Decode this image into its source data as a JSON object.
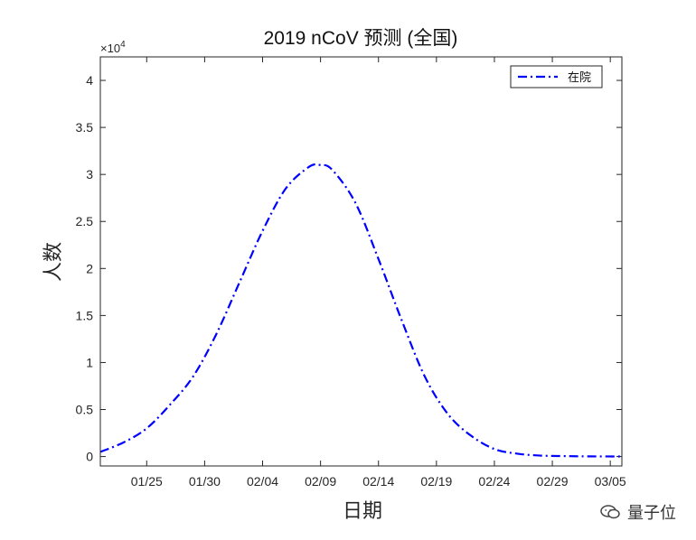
{
  "chart_data": {
    "type": "line",
    "title": "2019 nCoV 预测 (全国)",
    "xlabel": "日期",
    "ylabel": "人数",
    "y_exponent": "×10",
    "y_exponent_power": "4",
    "ylim": [
      -0.1,
      4.25
    ],
    "y_multiplier": 10000,
    "yticks": [
      0,
      0.5,
      1,
      1.5,
      2,
      2.5,
      3,
      3.5,
      4
    ],
    "ytick_labels": [
      "0",
      "0.5",
      "1",
      "1.5",
      "2",
      "2.5",
      "3",
      "3.5",
      "4"
    ],
    "xlim": [
      "01/21",
      "03/06"
    ],
    "xticks": [
      "01/25",
      "01/30",
      "02/04",
      "02/09",
      "02/14",
      "02/19",
      "02/24",
      "02/29",
      "03/05"
    ],
    "xtick_labels": [
      "01/25",
      "01/30",
      "02/04",
      "02/09",
      "02/14",
      "02/19",
      "02/24",
      "02/29",
      "03/05"
    ],
    "grid": false,
    "legend_position": "top-right",
    "series": [
      {
        "name": "在院",
        "color": "#0000ff",
        "line_style": "dash-dot",
        "x": [
          "01/21",
          "01/23",
          "01/25",
          "01/27",
          "01/29",
          "01/31",
          "02/02",
          "02/04",
          "02/06",
          "02/08",
          "02/09",
          "02/10",
          "02/12",
          "02/14",
          "02/16",
          "02/18",
          "02/20",
          "02/22",
          "02/24",
          "02/26",
          "02/28",
          "03/01",
          "03/03",
          "03/06"
        ],
        "values": [
          0.05,
          0.15,
          0.3,
          0.55,
          0.85,
          1.3,
          1.85,
          2.4,
          2.85,
          3.08,
          3.1,
          3.05,
          2.7,
          2.1,
          1.45,
          0.85,
          0.45,
          0.22,
          0.08,
          0.03,
          0.01,
          0.005,
          0.002,
          0.001
        ]
      }
    ]
  },
  "watermark": {
    "text": "量子位"
  }
}
